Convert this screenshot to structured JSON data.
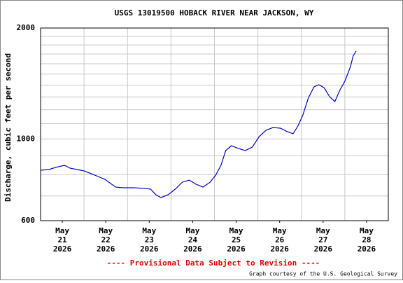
{
  "chart_data": {
    "type": "line",
    "title": "USGS 13019500 HOBACK RIVER NEAR JACKSON, WY",
    "y_label": "Discharge, cubic feet per second",
    "footer": "---- Provisional Data Subject to Revision ----",
    "credit": "Graph courtesy of the U.S. Geological Survey",
    "log_scale": true,
    "grid": true,
    "xlim": [
      21,
      29
    ],
    "xticks": [
      {
        "value": 21.5,
        "label": "May\n21\n2026"
      },
      {
        "value": 22.5,
        "label": "May\n22\n2026"
      },
      {
        "value": 23.5,
        "label": "May\n23\n2026"
      },
      {
        "value": 24.5,
        "label": "May\n24\n2026"
      },
      {
        "value": 25.5,
        "label": "May\n25\n2026"
      },
      {
        "value": 26.5,
        "label": "May\n26\n2026"
      },
      {
        "value": 27.5,
        "label": "May\n27\n2026"
      },
      {
        "value": 28.5,
        "label": "May\n28\n2026"
      }
    ],
    "xgrid": [
      22,
      23,
      24,
      25,
      26,
      27,
      28
    ],
    "ylim": [
      600,
      2000
    ],
    "yticks": [
      600,
      1000,
      2000
    ],
    "ygrid_minor": [
      700,
      800,
      900,
      1100,
      1200,
      1300,
      1400,
      1500,
      1600,
      1700,
      1800,
      1900
    ],
    "series": [
      {
        "color": "#0000cc",
        "x": [
          21.0,
          21.19,
          21.35,
          21.55,
          21.68,
          21.84,
          22.0,
          22.16,
          22.32,
          22.48,
          22.61,
          22.73,
          22.89,
          23.13,
          23.37,
          23.53,
          23.65,
          23.77,
          23.94,
          24.1,
          24.26,
          24.42,
          24.58,
          24.74,
          24.9,
          25.03,
          25.15,
          25.26,
          25.39,
          25.55,
          25.71,
          25.87,
          26.03,
          26.19,
          26.35,
          26.52,
          26.68,
          26.81,
          26.92,
          27.03,
          27.16,
          27.29,
          27.4,
          27.52,
          27.65,
          27.77,
          27.89,
          28.0,
          28.13,
          28.19,
          28.26
        ],
        "values": [
          822,
          826,
          837,
          848,
          833,
          826,
          819,
          805,
          791,
          777,
          757,
          740,
          737,
          737,
          734,
          731,
          706,
          693,
          706,
          731,
          763,
          773,
          753,
          740,
          763,
          798,
          848,
          930,
          958,
          942,
          930,
          950,
          1015,
          1056,
          1074,
          1069,
          1046,
          1033,
          1084,
          1157,
          1291,
          1384,
          1403,
          1378,
          1302,
          1263,
          1360,
          1434,
          1572,
          1679,
          1731
        ]
      }
    ]
  }
}
